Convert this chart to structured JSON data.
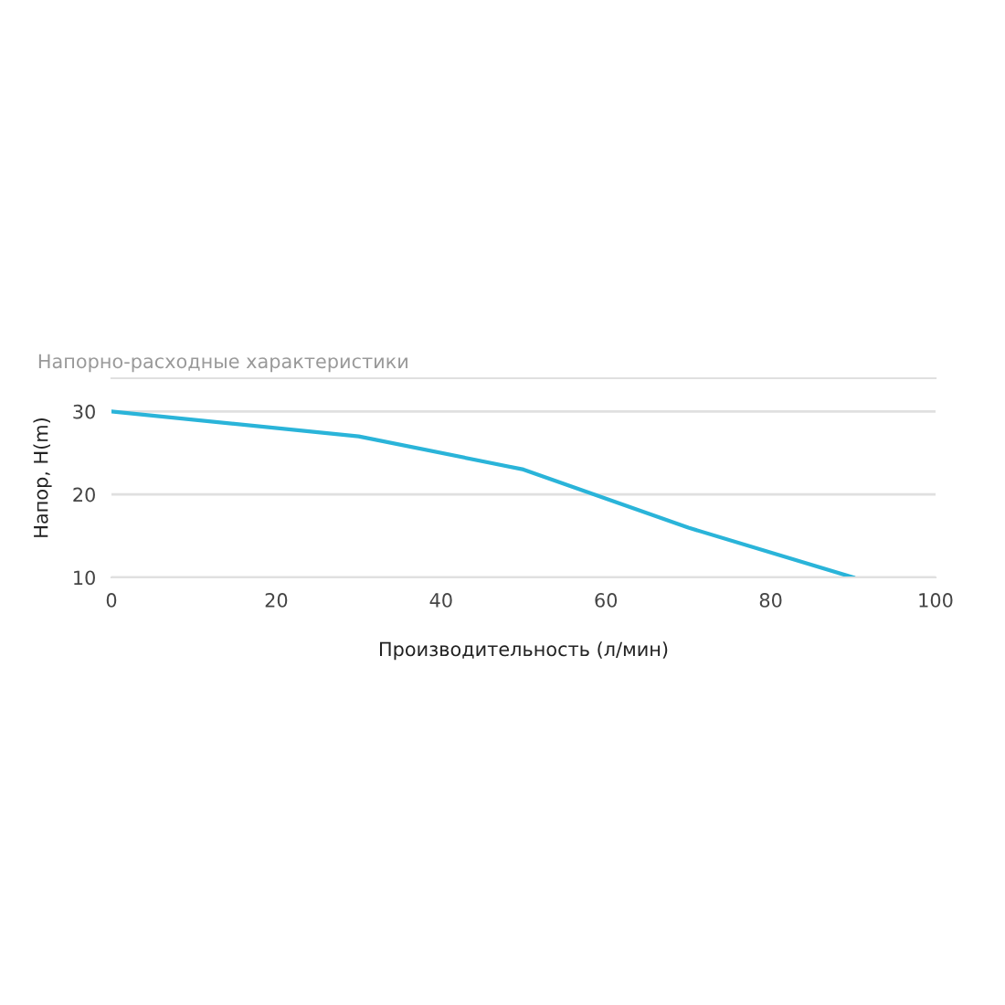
{
  "chart_data": {
    "type": "line",
    "title": "Напорно-расходные характеристики",
    "xlabel": "Производительность (л/мин)",
    "ylabel": "Напор, H(m)",
    "x": [
      0,
      30,
      50,
      70,
      90
    ],
    "series": [
      {
        "color": "#2ab4d9",
        "values": [
          30,
          27,
          23,
          16,
          10
        ]
      }
    ],
    "xlim": [
      0,
      100
    ],
    "xticks": [
      0,
      20,
      40,
      60,
      80,
      100
    ],
    "ylim": [
      10,
      34
    ],
    "yticks": [
      10,
      20,
      30
    ],
    "grid": "y",
    "legend": false,
    "marker": "none",
    "line_style": "solid"
  }
}
